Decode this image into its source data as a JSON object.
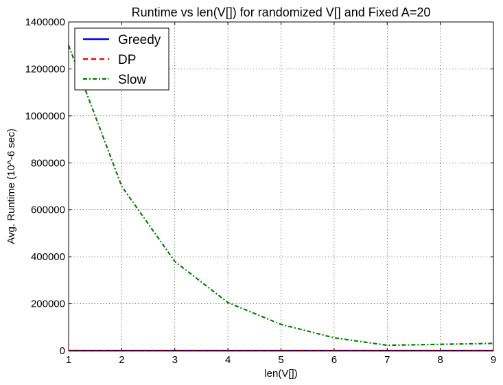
{
  "chart_data": {
    "type": "line",
    "title": "Runtime vs len(V[]) for randomized V[] and Fixed A=20",
    "xlabel": "len(V[])",
    "ylabel": "Avg. Runtime (10^-6 sec)",
    "xlim": [
      1,
      9
    ],
    "ylim": [
      0,
      1400000
    ],
    "x_ticks": [
      1,
      2,
      3,
      4,
      5,
      6,
      7,
      8,
      9
    ],
    "y_ticks": [
      0,
      200000,
      400000,
      600000,
      800000,
      1000000,
      1200000,
      1400000
    ],
    "grid": true,
    "legend_position": "top-left",
    "x": [
      1,
      2,
      3,
      4,
      5,
      6,
      7,
      8,
      9
    ],
    "series": [
      {
        "name": "Greedy",
        "color": "#0000ff",
        "style": "solid",
        "values": [
          0,
          0,
          0,
          0,
          0,
          0,
          0,
          0,
          0
        ]
      },
      {
        "name": "DP",
        "color": "#ff0000",
        "style": "dashed",
        "values": [
          0,
          0,
          0,
          0,
          0,
          0,
          0,
          0,
          0
        ]
      },
      {
        "name": "Slow",
        "color": "#008000",
        "style": "dashdot",
        "values": [
          1300000,
          700000,
          380000,
          205000,
          112000,
          55000,
          23000,
          27000,
          31000
        ]
      }
    ]
  }
}
